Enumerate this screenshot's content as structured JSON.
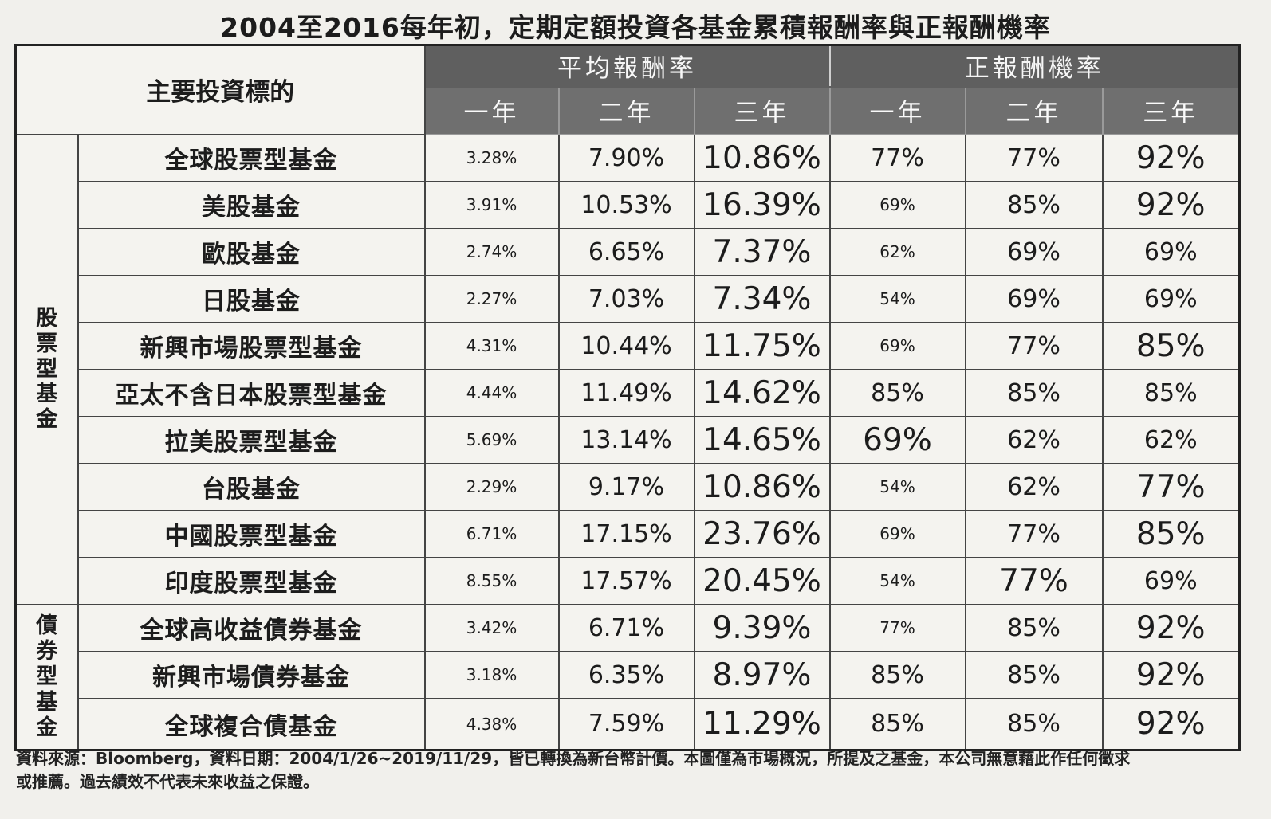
{
  "title": "2004至2016每年初，定期定額投資各基金累積報酬率與正報酬機率",
  "header": {
    "corner": "主要投資標的",
    "group_avg": "平均報酬率",
    "group_prob": "正報酬機率",
    "periods": [
      "一年",
      "二年",
      "三年",
      "一年",
      "二年",
      "三年"
    ]
  },
  "groups": [
    {
      "label": [
        "股",
        "票",
        "型",
        "基",
        "金"
      ]
    },
    {
      "label": [
        "債",
        "券",
        "型",
        "基",
        "金"
      ]
    }
  ],
  "rows": [
    {
      "fund": "全球股票型基金",
      "avg": [
        "3.28%",
        "7.90%",
        "10.86%"
      ],
      "prob": [
        "77%",
        "77%",
        "92%"
      ]
    },
    {
      "fund": "美股基金",
      "avg": [
        "3.91%",
        "10.53%",
        "16.39%"
      ],
      "prob": [
        "69%",
        "85%",
        "92%"
      ]
    },
    {
      "fund": "歐股基金",
      "avg": [
        "2.74%",
        "6.65%",
        "7.37%"
      ],
      "prob": [
        "62%",
        "69%",
        "69%"
      ]
    },
    {
      "fund": "日股基金",
      "avg": [
        "2.27%",
        "7.03%",
        "7.34%"
      ],
      "prob": [
        "54%",
        "69%",
        "69%"
      ]
    },
    {
      "fund": "新興市場股票型基金",
      "avg": [
        "4.31%",
        "10.44%",
        "11.75%"
      ],
      "prob": [
        "69%",
        "77%",
        "85%"
      ]
    },
    {
      "fund": "亞太不含日本股票型基金",
      "avg": [
        "4.44%",
        "11.49%",
        "14.62%"
      ],
      "prob": [
        "85%",
        "85%",
        "85%"
      ]
    },
    {
      "fund": "拉美股票型基金",
      "avg": [
        "5.69%",
        "13.14%",
        "14.65%"
      ],
      "prob": [
        "69%",
        "62%",
        "62%"
      ]
    },
    {
      "fund": "台股基金",
      "avg": [
        "2.29%",
        "9.17%",
        "10.86%"
      ],
      "prob": [
        "54%",
        "62%",
        "77%"
      ]
    },
    {
      "fund": "中國股票型基金",
      "avg": [
        "6.71%",
        "17.15%",
        "23.76%"
      ],
      "prob": [
        "69%",
        "77%",
        "85%"
      ]
    },
    {
      "fund": "印度股票型基金",
      "avg": [
        "8.55%",
        "17.57%",
        "20.45%"
      ],
      "prob": [
        "54%",
        "77%",
        "69%"
      ]
    },
    {
      "fund": "全球高收益債券基金",
      "avg": [
        "3.42%",
        "6.71%",
        "9.39%"
      ],
      "prob": [
        "77%",
        "85%",
        "92%"
      ]
    },
    {
      "fund": "新興市場債券基金",
      "avg": [
        "3.18%",
        "6.35%",
        "8.97%"
      ],
      "prob": [
        "85%",
        "85%",
        "92%"
      ]
    },
    {
      "fund": "全球複合債基金",
      "avg": [
        "4.38%",
        "7.59%",
        "11.29%"
      ],
      "prob": [
        "85%",
        "85%",
        "92%"
      ]
    }
  ],
  "footnote": {
    "line1": "資料來源：Bloomberg，資料日期：2004/1/26~2019/11/29，皆已轉換為新台幣計價。本圖僅為市場概況，所提及之基金，本公司無意藉此作任何徵求",
    "line2": "或推薦。過去績效不代表未來收益之保證。"
  }
}
